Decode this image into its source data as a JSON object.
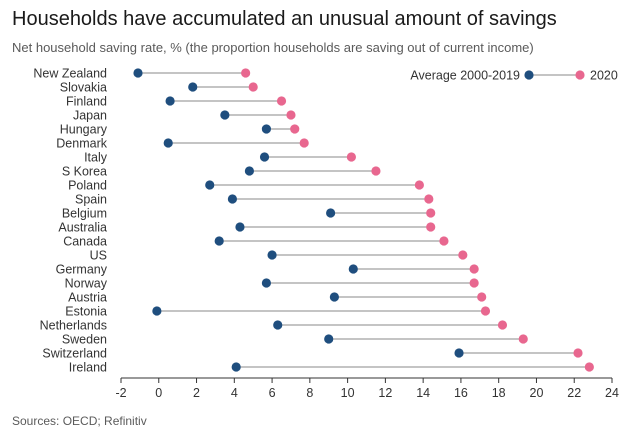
{
  "title": "Households have accumulated an unusual amount of savings",
  "subtitle": "Net household saving rate, % (the proportion households are saving out of current income)",
  "source": "Sources: OECD; Refinitiv",
  "colors": {
    "average": "#1f4e7e",
    "y2020": "#e8678f",
    "connector": "#8a8a8a",
    "axis": "#333333"
  },
  "chart_data": {
    "type": "dot",
    "title": "Households have accumulated an unusual amount of savings",
    "subtitle": "Net household saving rate, % (the proportion households are saving out of current income)",
    "xlim": [
      -2,
      24
    ],
    "xticks": [
      -2,
      0,
      2,
      4,
      6,
      8,
      10,
      12,
      14,
      16,
      18,
      20,
      22,
      24
    ],
    "legend": {
      "placement": "top-right",
      "average_label": "Average 2000-2019",
      "y2020_label": "2020"
    },
    "categories": [
      "New Zealand",
      "Slovakia",
      "Finland",
      "Japan",
      "Hungary",
      "Denmark",
      "Italy",
      "S Korea",
      "Poland",
      "Spain",
      "Belgium",
      "Australia",
      "Canada",
      "US",
      "Germany",
      "Norway",
      "Austria",
      "Estonia",
      "Netherlands",
      "Sweden",
      "Switzerland",
      "Ireland"
    ],
    "series": [
      {
        "name": "Average 2000-2019",
        "values": [
          -1.1,
          1.8,
          0.6,
          3.5,
          5.7,
          0.5,
          5.6,
          4.8,
          2.7,
          3.9,
          9.1,
          4.3,
          3.2,
          6.0,
          10.3,
          5.7,
          9.3,
          -0.1,
          6.3,
          9.0,
          15.9,
          4.1
        ]
      },
      {
        "name": "2020",
        "values": [
          4.6,
          5.0,
          6.5,
          7.0,
          7.2,
          7.7,
          10.2,
          11.5,
          13.8,
          14.3,
          14.4,
          14.4,
          15.1,
          16.1,
          16.7,
          16.7,
          17.1,
          17.3,
          18.2,
          19.3,
          22.2,
          22.8
        ]
      }
    ]
  }
}
